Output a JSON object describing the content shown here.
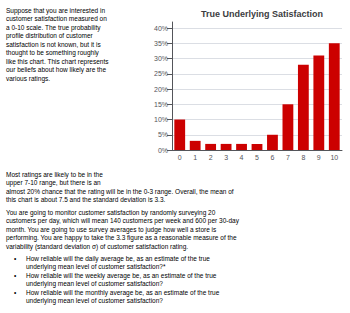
{
  "chart_data": {
    "type": "bar",
    "title": "True Underlying Satisfaction",
    "categories": [
      0,
      1,
      2,
      3,
      4,
      5,
      6,
      7,
      8,
      9,
      10
    ],
    "values": [
      0.1,
      0.03,
      0.02,
      0.02,
      0.02,
      0.02,
      0.05,
      0.15,
      0.28,
      0.31,
      0.35
    ],
    "color": "#cc0000",
    "ylim": [
      0,
      0.42
    ],
    "yticks": [
      {
        "value": 0.0,
        "label": "0%"
      },
      {
        "value": 0.05,
        "label": "5%"
      },
      {
        "value": 0.1,
        "label": "10%"
      },
      {
        "value": 0.15,
        "label": "15%"
      },
      {
        "value": 0.2,
        "label": "20%"
      },
      {
        "value": 0.25,
        "label": "25%"
      },
      {
        "value": 0.3,
        "label": "30%"
      },
      {
        "value": 0.35,
        "label": "35%"
      },
      {
        "value": 0.4,
        "label": "40%"
      }
    ],
    "grid": true,
    "annotations": [
      "Suppose that you are interested in\ncustomer satisfaction measured on\na 0-10 scale. The true probability\nprofile distribution of customer\nsatisfaction is not known, but it is\nthought to be something roughly\nlike this chart. This chart represents\nour beliefs about how likely are the\nvarious ratings.",
      "Most ratings are likely to be in the\nupper 7-10 range, but there is an\nalmost 20% chance that the rating will be in the 0-3 range. Overall, the mean of\nthis chart is about 7.5 and the standard deviation is 3.3.",
      "You are going to monitor customer satisfaction by randomly surveying 20\ncustomers per day, which will mean 140 customers per week and 600 per 30-day\nmonth. You are going to use survey averages to judge how well a store is\nperforming. You are happy to take the 3.3 figure as a reasonable measure of the\nvariability (standard deviation σ) of customer satisfaction rating.",
      "•",
      "How reliable will the daily average be, as an estimate of the true\nunderlying mean level of customer satisfaction?*",
      "•",
      "How reliable will the weekly average be, as an estimate of the true\nunderlying mean level of customer satisfaction?",
      "•",
      "How reliable will the monthly average be, as an estimate of the true\nunderlying mean level of customer satisfaction?"
    ]
  }
}
